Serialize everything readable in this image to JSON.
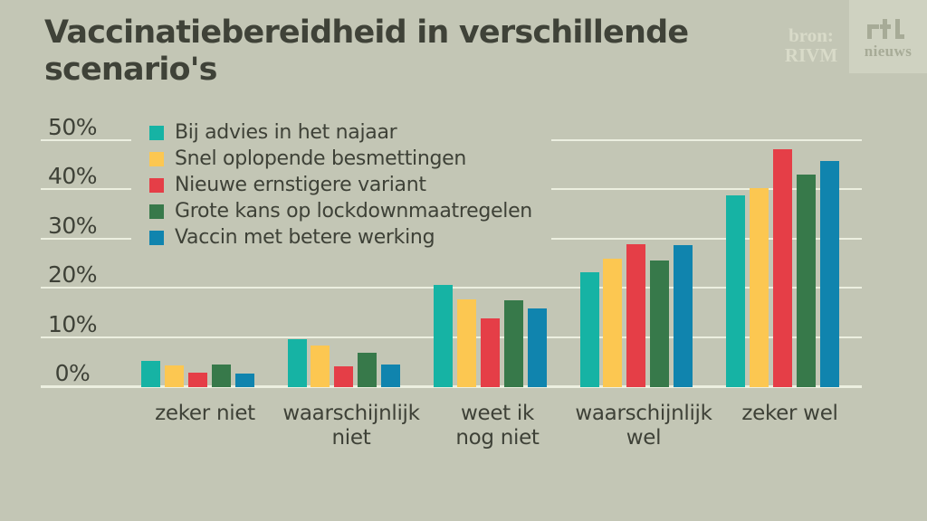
{
  "header": {
    "title": "Vaccinatiebereidheid in verschillende scenario's",
    "source_label": "bron:",
    "source_name": "RIVM",
    "brand_logo": "rtl",
    "brand_sub": "nieuws"
  },
  "colors": {
    "background": "#c3c6b5",
    "brand_box": "#cfd2c1",
    "brand_text": "#a7ab97",
    "source_text": "#d9dbc9",
    "title_text": "#3f4238",
    "grid_line": "#ecefe0",
    "tick_text": "#3e4137"
  },
  "chart_data": {
    "type": "bar",
    "title": "Vaccinatiebereidheid in verschillende scenario's",
    "categories": [
      "zeker niet",
      "waarschijnlijk niet",
      "weet ik nog niet",
      "waarschijnlijk wel",
      "zeker wel"
    ],
    "category_lines": [
      "zeker niet",
      "waarschijnlijk\nniet",
      "weet ik\nnog niet",
      "waarschijnlijk\nwel",
      "zeker wel"
    ],
    "series": [
      {
        "name": "Bij advies in het najaar",
        "color": "#16b3a4",
        "values": [
          5.5,
          9.8,
          20.8,
          23.5,
          39.0
        ]
      },
      {
        "name": "Snel oplopende besmettingen",
        "color": "#fcc751",
        "values": [
          4.5,
          8.6,
          18.0,
          26.2,
          40.5
        ]
      },
      {
        "name": "Nieuwe ernstigere variant",
        "color": "#e53e47",
        "values": [
          3.0,
          4.4,
          14.0,
          29.2,
          48.5
        ]
      },
      {
        "name": "Grote kans op lockdownmaatregelen",
        "color": "#37794a",
        "values": [
          4.6,
          7.0,
          17.8,
          25.8,
          43.3
        ]
      },
      {
        "name": "Vaccin met betere werking",
        "color": "#1084ae",
        "values": [
          2.8,
          4.7,
          16.0,
          29.0,
          46.0
        ]
      }
    ],
    "ylabel": "",
    "xlabel": "",
    "ylim": [
      0,
      50
    ],
    "yticks": [
      0,
      10,
      20,
      30,
      40,
      50
    ],
    "ytick_labels": [
      "0%",
      "10%",
      "20%",
      "30%",
      "40%",
      "50%"
    ],
    "grid": true,
    "legend_position": "top-left"
  }
}
